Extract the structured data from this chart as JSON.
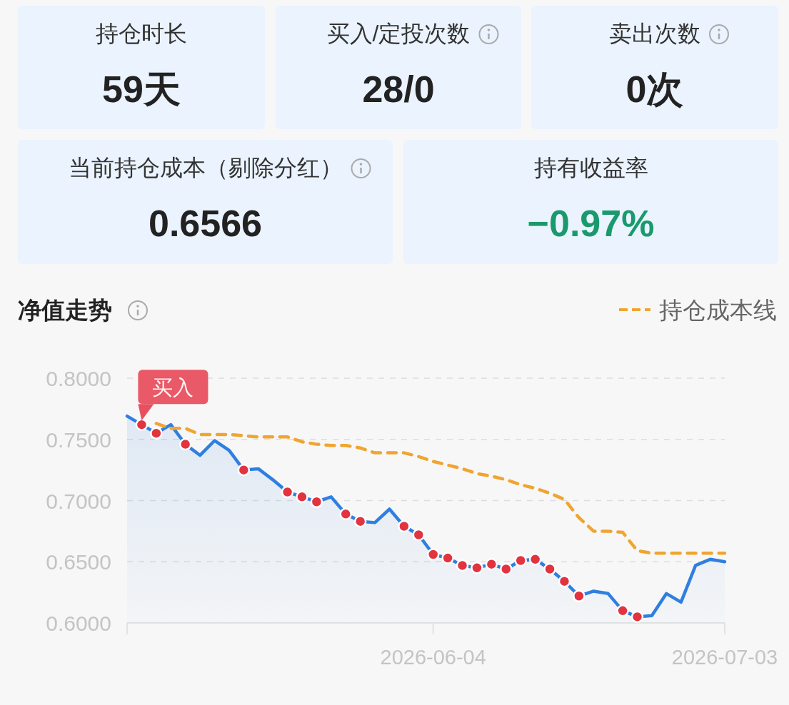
{
  "chart_data": [
    {
      "type": "other",
      "annotations": [
        "持仓时长",
        "59天",
        "买入/定投次数",
        "28/0",
        "卖出次数",
        "0次",
        "当前持仓成本（剔除分红）",
        "0.6566",
        "持有收益率",
        "−0.97%"
      ],
      "colors": [
        "#333333",
        "#222222",
        "#333333",
        "#222222",
        "#333333",
        "#222222",
        "#333333",
        "#222222",
        "#333333",
        "#1a9a6c"
      ]
    },
    {
      "type": "line",
      "title": "净值走势",
      "categories": [
        null,
        null,
        null,
        null,
        null,
        null,
        null,
        null,
        null,
        null,
        null,
        null,
        null,
        null,
        null,
        null,
        null,
        null,
        null,
        null,
        null,
        "2026-06-04",
        null,
        null,
        null,
        null,
        null,
        null,
        null,
        null,
        null,
        null,
        null,
        null,
        null,
        null,
        null,
        null,
        null,
        null,
        null,
        "2026-07-03"
      ],
      "series": [
        {
          "type": "area",
          "color": "#2f7fe0",
          "values": [
            0.769,
            0.762,
            0.755,
            0.762,
            0.746,
            0.737,
            0.749,
            0.741,
            0.725,
            0.726,
            0.717,
            0.707,
            0.703,
            0.699,
            0.703,
            0.689,
            0.683,
            0.682,
            0.693,
            0.679,
            0.672,
            0.656,
            0.653,
            0.647,
            0.645,
            0.648,
            0.644,
            0.651,
            0.652,
            0.644,
            0.634,
            0.622,
            0.626,
            0.624,
            0.61,
            0.605,
            0.606,
            0.624,
            0.617,
            0.647,
            0.652,
            0.65
          ]
        },
        {
          "type": "scatter",
          "color": "#e2333f",
          "marker": "circle",
          "values": [
            null,
            0.762,
            0.755,
            null,
            0.746,
            null,
            null,
            null,
            0.725,
            null,
            null,
            0.707,
            0.703,
            0.699,
            null,
            0.689,
            0.683,
            null,
            null,
            0.679,
            0.672,
            0.656,
            0.653,
            0.647,
            0.645,
            0.648,
            0.644,
            0.651,
            0.652,
            0.644,
            0.634,
            0.622,
            null,
            null,
            0.61,
            0.605,
            null,
            null,
            null,
            null,
            null,
            null
          ]
        },
        {
          "type": "line",
          "name": "持仓成本线",
          "color": "#f0a530",
          "line_style": "dashed",
          "values": [
            null,
            null,
            0.763,
            0.759,
            0.759,
            0.754,
            0.754,
            0.754,
            0.753,
            0.752,
            0.752,
            0.752,
            0.748,
            0.746,
            0.745,
            0.745,
            0.743,
            0.739,
            0.739,
            0.739,
            0.736,
            0.732,
            0.729,
            0.726,
            0.722,
            0.72,
            0.717,
            0.713,
            0.71,
            0.706,
            0.701,
            0.686,
            0.675,
            0.675,
            0.674,
            0.659,
            0.657,
            0.657,
            0.657,
            0.657,
            0.657,
            0.657
          ]
        }
      ],
      "ylim": [
        0.6,
        0.8
      ],
      "yticks": [
        {
          "value": 0.6,
          "label": "0.6000"
        },
        {
          "value": 0.65,
          "label": "0.6500"
        },
        {
          "value": 0.7,
          "label": "0.7000"
        },
        {
          "value": 0.75,
          "label": "0.7500"
        },
        {
          "value": 0.8,
          "label": "0.8000"
        }
      ],
      "grid": "y",
      "legend": "top right",
      "annotations": [
        {
          "text": "买入",
          "y": 0.762
        }
      ]
    }
  ]
}
